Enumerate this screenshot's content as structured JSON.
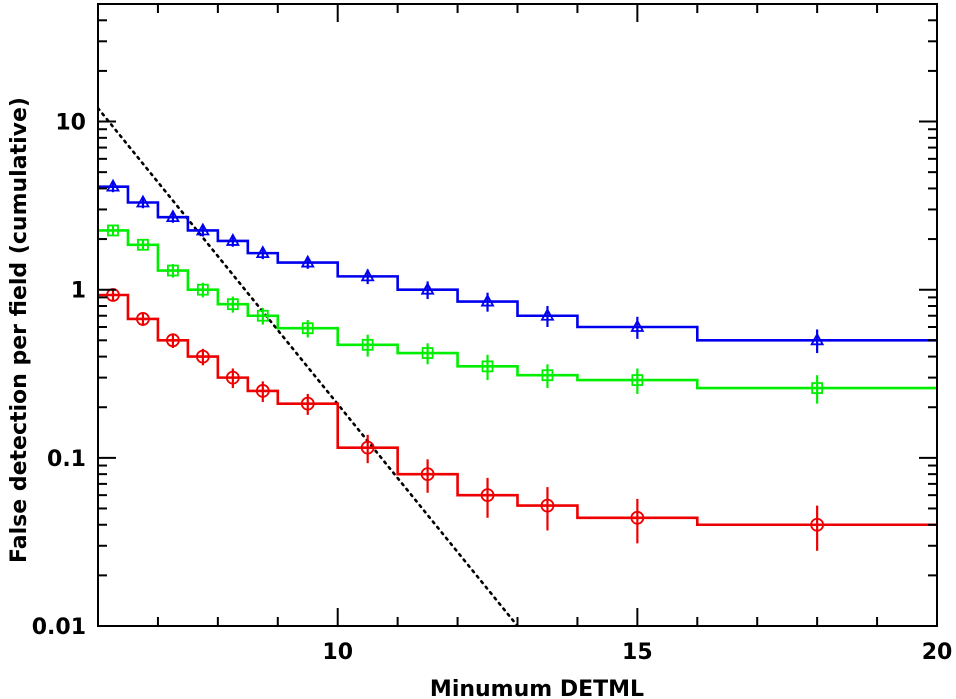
{
  "chart_data": {
    "type": "line",
    "title": "",
    "xlabel": "Minumum DETML",
    "ylabel": "False detection per field (cumulative)",
    "xlim": [
      6,
      20
    ],
    "ylim": [
      0.01,
      50
    ],
    "yscale": "log",
    "x_ticks": [
      10,
      15,
      20
    ],
    "x_tick_labels": [
      "10",
      "15",
      "20"
    ],
    "y_ticks": [
      0.01,
      0.1,
      1,
      10
    ],
    "y_tick_labels": [
      "0.01",
      "0.1",
      "1",
      "10"
    ],
    "grid": false,
    "legend": "none",
    "x_bin_edges": [
      6,
      6.5,
      7,
      7.5,
      8,
      8.5,
      9,
      10,
      11,
      12,
      13,
      14,
      16,
      20
    ],
    "x_points": [
      6.25,
      6.75,
      7.25,
      7.75,
      8.25,
      8.75,
      9.5,
      10.5,
      11.5,
      12.5,
      13.5,
      15,
      18
    ],
    "series": [
      {
        "color": "#0000ee",
        "marker": "triangle",
        "values": [
          4.1,
          3.3,
          2.7,
          2.25,
          1.95,
          1.65,
          1.45,
          1.2,
          1.0,
          0.85,
          0.7,
          0.6,
          0.5
        ],
        "err_low": [
          0.3,
          0.25,
          0.2,
          0.18,
          0.15,
          0.13,
          0.12,
          0.12,
          0.12,
          0.11,
          0.1,
          0.09,
          0.08
        ],
        "err_high": [
          0.3,
          0.25,
          0.2,
          0.18,
          0.15,
          0.13,
          0.12,
          0.12,
          0.12,
          0.11,
          0.1,
          0.09,
          0.08
        ]
      },
      {
        "color": "#00ee00",
        "marker": "square",
        "values": [
          2.25,
          1.85,
          1.3,
          1.0,
          0.82,
          0.7,
          0.59,
          0.47,
          0.42,
          0.35,
          0.31,
          0.29,
          0.26
        ],
        "err_low": [
          0.15,
          0.14,
          0.12,
          0.1,
          0.09,
          0.08,
          0.07,
          0.07,
          0.06,
          0.06,
          0.05,
          0.05,
          0.05
        ],
        "err_high": [
          0.15,
          0.14,
          0.12,
          0.1,
          0.09,
          0.08,
          0.07,
          0.07,
          0.06,
          0.06,
          0.05,
          0.05,
          0.05
        ]
      },
      {
        "color": "#ee0000",
        "marker": "circle",
        "values": [
          0.93,
          0.67,
          0.5,
          0.4,
          0.3,
          0.25,
          0.21,
          0.115,
          0.08,
          0.06,
          0.052,
          0.044,
          0.04
        ],
        "err_low": [
          0.07,
          0.06,
          0.05,
          0.045,
          0.04,
          0.035,
          0.03,
          0.022,
          0.018,
          0.016,
          0.015,
          0.013,
          0.012
        ],
        "err_high": [
          0.07,
          0.06,
          0.05,
          0.045,
          0.04,
          0.035,
          0.03,
          0.022,
          0.018,
          0.016,
          0.015,
          0.013,
          0.012
        ]
      }
    ],
    "reference_line": {
      "style": "dotted",
      "color": "#000000",
      "x": [
        6,
        13
      ],
      "y": [
        12,
        0.01
      ]
    }
  }
}
